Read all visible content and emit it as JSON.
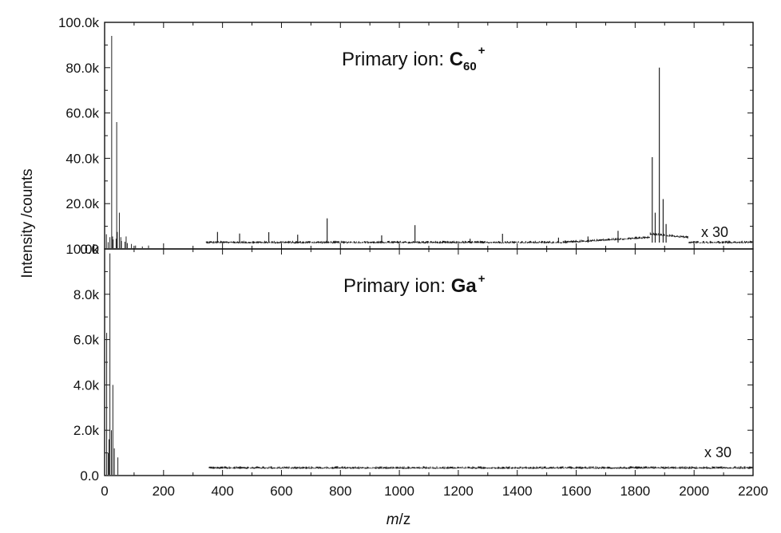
{
  "chart_data": {
    "type": "line",
    "xlabel_italic": "m",
    "xlabel_rest": "/z",
    "ylabel": "Intensity /counts",
    "xlim": [
      0,
      2200
    ],
    "x_ticks": [
      "0",
      "200",
      "400",
      "600",
      "800",
      "1000",
      "1200",
      "1400",
      "1600",
      "1800",
      "2000",
      "2200"
    ],
    "panels": [
      {
        "title_prefix": "Primary ion: ",
        "title_ion": "C",
        "title_ion_sub": "60",
        "title_ion_sup": "+",
        "ylim": [
          0,
          100000
        ],
        "y_ticks": [
          "0.0",
          "20.0k",
          "40.0k",
          "60.0k",
          "80.0k",
          "100.0k"
        ],
        "multiplier_label": "x 30",
        "low_mass_peaks": [
          [
            6,
            6500
          ],
          [
            12,
            3000
          ],
          [
            18,
            5200
          ],
          [
            24,
            94000
          ],
          [
            27,
            5500
          ],
          [
            29,
            4200
          ],
          [
            39,
            4500
          ],
          [
            41,
            56000
          ],
          [
            43,
            7500
          ],
          [
            50,
            16000
          ],
          [
            55,
            5200
          ],
          [
            57,
            3500
          ],
          [
            69,
            3200
          ],
          [
            73,
            5500
          ],
          [
            77,
            2600
          ],
          [
            91,
            2200
          ],
          [
            105,
            1500
          ],
          [
            128,
            1100
          ],
          [
            149,
            1500
          ]
        ],
        "baseline_x_range": [
          345,
          2200
        ],
        "baseline_level": 2800,
        "high_mass_peaks": [
          [
            383,
            7500
          ],
          [
            458,
            6800
          ],
          [
            557,
            7400
          ],
          [
            655,
            6300
          ],
          [
            755,
            13500
          ],
          [
            940,
            6000
          ],
          [
            1053,
            10500
          ],
          [
            1240,
            4500
          ],
          [
            1350,
            6700
          ],
          [
            1540,
            5000
          ],
          [
            1640,
            5500
          ],
          [
            1742,
            8000
          ],
          [
            1858,
            40500
          ],
          [
            1868,
            16000
          ],
          [
            1882,
            80000
          ],
          [
            1895,
            22000
          ],
          [
            1905,
            11000
          ]
        ]
      },
      {
        "title_prefix": "Primary ion: ",
        "title_ion": "Ga",
        "title_ion_sup": "+",
        "ylim": [
          0,
          10000
        ],
        "y_ticks": [
          "0.0",
          "2.0k",
          "4.0k",
          "6.0k",
          "8.0k",
          "10.0k"
        ],
        "multiplier_label": "x 30",
        "low_mass_peaks": [
          [
            7,
            6300
          ],
          [
            12,
            1000
          ],
          [
            15,
            1600
          ],
          [
            18,
            9800
          ],
          [
            23,
            2000
          ],
          [
            28,
            4000
          ],
          [
            33,
            1200
          ],
          [
            45,
            800
          ]
        ],
        "baseline_x_range": [
          355,
          2200
        ],
        "baseline_level": 330,
        "high_mass_peaks": []
      }
    ]
  }
}
